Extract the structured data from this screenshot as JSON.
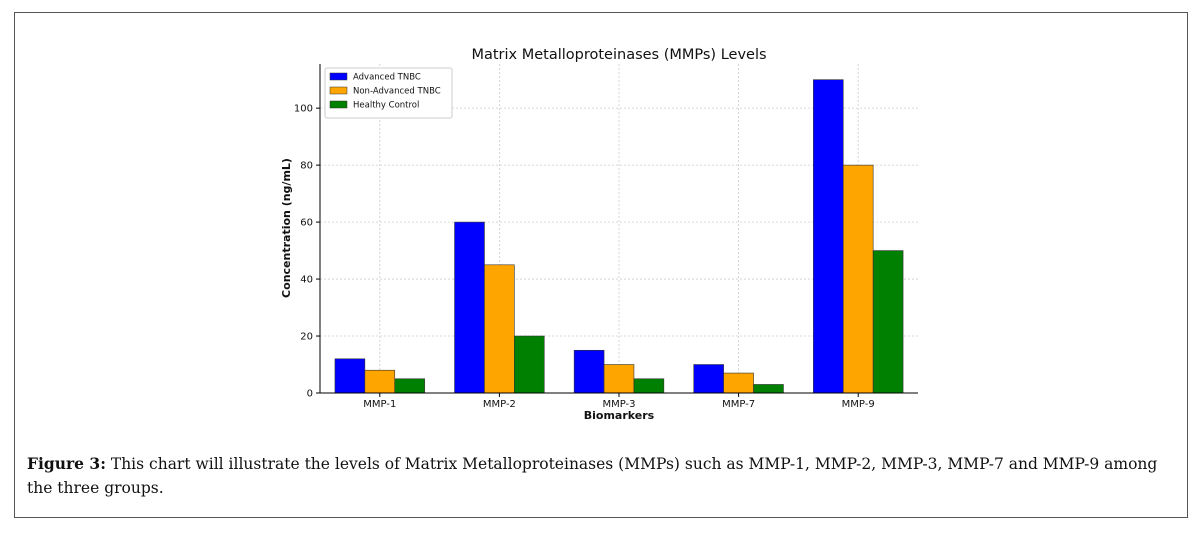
{
  "chart_data": {
    "type": "bar",
    "title": "Matrix Metalloproteinases (MMPs) Levels",
    "xlabel": "Biomarkers",
    "ylabel": "Concentration (ng/mL)",
    "categories": [
      "MMP-1",
      "MMP-2",
      "MMP-3",
      "MMP-7",
      "MMP-9"
    ],
    "series": [
      {
        "name": "Advanced TNBC",
        "color": "#0000ff",
        "values": [
          12,
          60,
          15,
          10,
          110
        ]
      },
      {
        "name": "Non-Advanced TNBC",
        "color": "#ffa500",
        "values": [
          8,
          45,
          10,
          7,
          80
        ]
      },
      {
        "name": "Healthy Control",
        "color": "#008000",
        "values": [
          5,
          20,
          5,
          3,
          50
        ]
      }
    ],
    "ylim": [
      0,
      115.5
    ],
    "yticks": [
      0,
      20,
      40,
      60,
      80,
      100
    ],
    "grid": true,
    "legend_position": "top-left"
  },
  "caption": {
    "label": "Figure 3:",
    "text": " This chart will illustrate the levels of Matrix Metalloproteinases (MMPs) such as MMP-1, MMP-2, MMP-3, MMP-7 and MMP-9 among the three groups."
  }
}
